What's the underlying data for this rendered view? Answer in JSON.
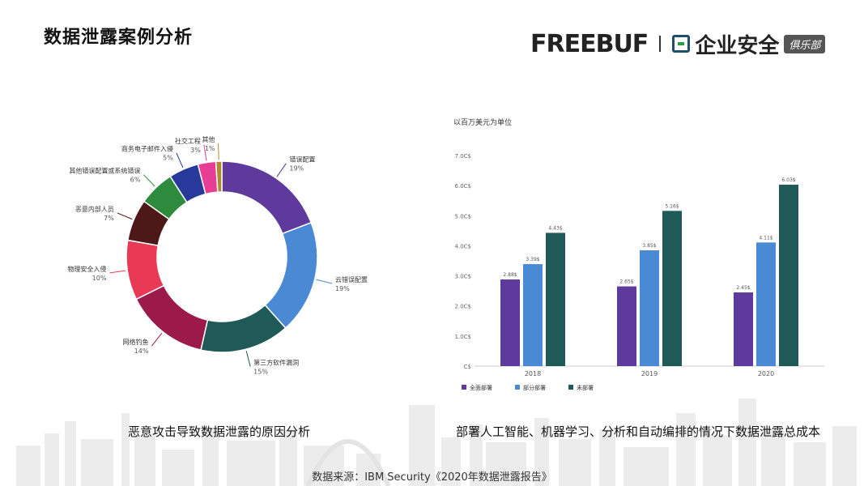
{
  "header": {
    "title": "数据泄露案例分析"
  },
  "logo": {
    "freebuf": "FREEBUF",
    "brand": "企业安全",
    "club": "俱乐部"
  },
  "captions": {
    "left": "恶意攻击导致数据泄露的原因分析",
    "right": "部署人工智能、机器学习、分析和自动编排的情况下数据泄露总成本"
  },
  "source": "数据来源：IBM Security《2020年数据泄露报告》",
  "chart_data": [
    {
      "type": "pie",
      "donut": true,
      "slices": [
        {
          "name": "错误配置",
          "value": 19,
          "label": "19%",
          "color": "#5e3a9c"
        },
        {
          "name": "云错误配置",
          "value": 19,
          "label": "19%",
          "color": "#4a89d4"
        },
        {
          "name": "第三方软件漏洞",
          "value": 15,
          "label": "15%",
          "color": "#1f5a58"
        },
        {
          "name": "网络钓鱼",
          "value": 14,
          "label": "14%",
          "color": "#9b1a4a"
        },
        {
          "name": "物理安全入侵",
          "value": 10,
          "label": "10%",
          "color": "#e83a55"
        },
        {
          "name": "恶意内部人员",
          "value": 7,
          "label": "7%",
          "color": "#4d1818"
        },
        {
          "name": "其他错误配置或系统错误",
          "value": 6,
          "label": "6%",
          "color": "#2e8b3e"
        },
        {
          "name": "商务电子邮件入侵",
          "value": 5,
          "label": "5%",
          "color": "#27399a"
        },
        {
          "name": "社交工程",
          "value": 3,
          "label": "3%",
          "color": "#e83d95"
        },
        {
          "name": "其他",
          "value": 1,
          "label": "1%",
          "color": "#b08a2e"
        }
      ]
    },
    {
      "type": "bar",
      "unit_label": "以百万美元为单位",
      "categories": [
        "2018",
        "2019",
        "2020"
      ],
      "ylim": [
        0,
        7
      ],
      "y_ticks": [
        "C$",
        "1.0C$",
        "2.0C$",
        "3.0C$",
        "4.0C$",
        "5.0C$",
        "6.0C$",
        "7.0C$"
      ],
      "series": [
        {
          "name": "全面部署",
          "color": "#5e3a9c",
          "values": [
            2.88,
            2.65,
            2.45
          ],
          "labels": [
            "2.88$",
            "2.65$",
            "2.45$"
          ]
        },
        {
          "name": "部分部署",
          "color": "#4a89d4",
          "values": [
            3.39,
            3.85,
            4.11
          ],
          "labels": [
            "3.39$",
            "3.85$",
            "4.11$"
          ]
        },
        {
          "name": "未部署",
          "color": "#1f5a58",
          "values": [
            4.43,
            5.16,
            6.03
          ],
          "labels": [
            "4.43$",
            "5.16$",
            "6.03$"
          ]
        }
      ],
      "grid": false,
      "legend": "bottom-left"
    }
  ]
}
